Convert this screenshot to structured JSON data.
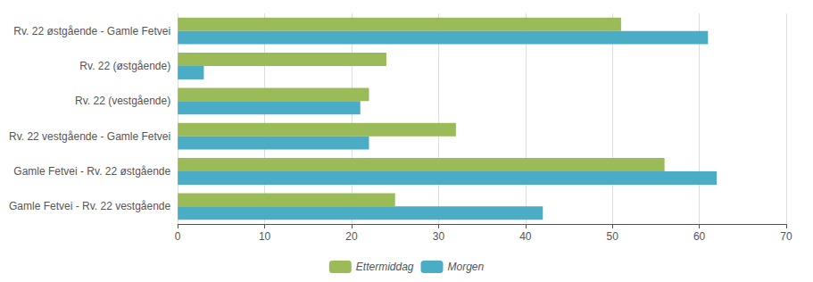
{
  "chart_data": {
    "type": "bar",
    "orientation": "horizontal",
    "categories": [
      "Rv. 22 østgående - Gamle Fetvei",
      "Rv. 22 (østgående)",
      "Rv. 22 (vestgående)",
      "Rv. 22 vestgående - Gamle Fetvei",
      "Gamle Fetvei - Rv. 22 østgående",
      "Gamle Fetvei - Rv. 22 vestgående"
    ],
    "series": [
      {
        "name": "Ettermiddag",
        "color": "#9BBB59",
        "values": [
          51,
          24,
          22,
          32,
          56,
          25
        ]
      },
      {
        "name": "Morgen",
        "color": "#4BACC6",
        "values": [
          61,
          3,
          21,
          22,
          62,
          42
        ]
      }
    ],
    "xlim": [
      0,
      70
    ],
    "xticks": [
      0,
      10,
      20,
      30,
      40,
      50,
      60,
      70
    ],
    "grid": true,
    "legend": "bottom"
  }
}
